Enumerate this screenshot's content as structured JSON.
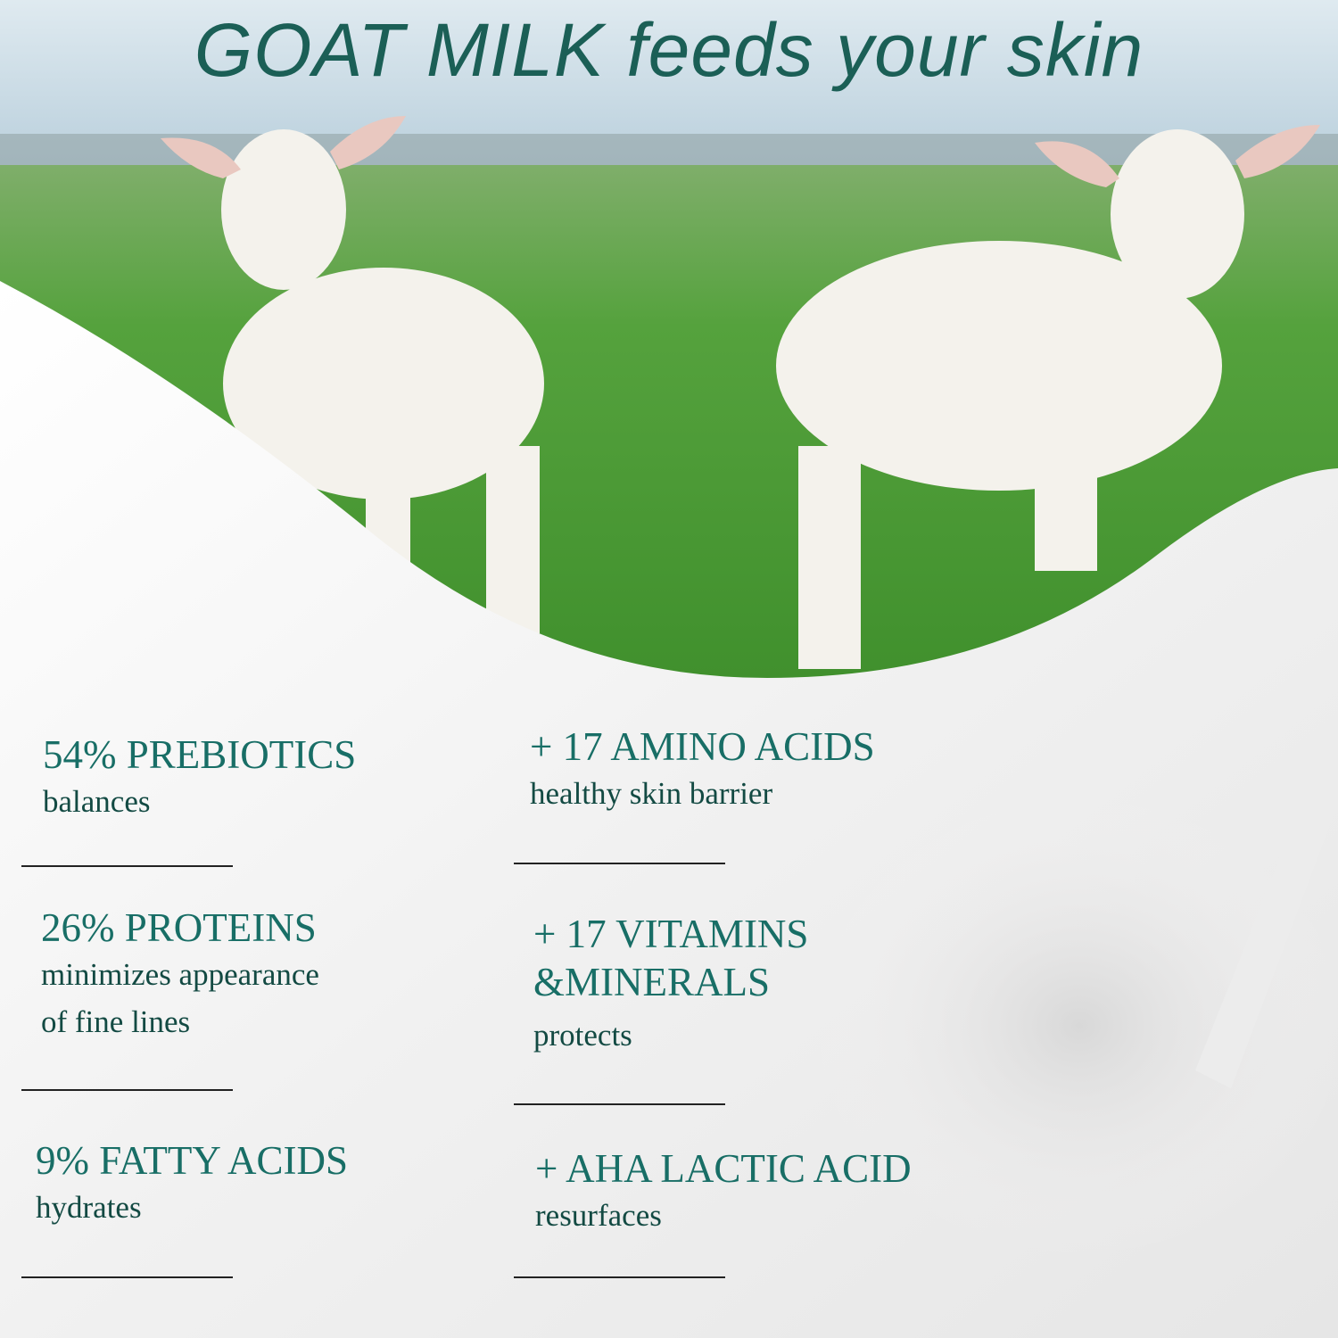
{
  "title": "GOAT MILK feeds your skin",
  "colors": {
    "heading": "#186e66",
    "subtext": "#134a43",
    "title": "#1b5f56",
    "grass": "#4f9a3a",
    "sky": "#c9dde8"
  },
  "left_items": [
    {
      "heading": "54% PREBIOTICS",
      "lines": [
        "balances"
      ]
    },
    {
      "heading": "26% PROTEINS",
      "lines": [
        "minimizes appearance",
        "of fine lines"
      ]
    },
    {
      "heading": "9% FATTY ACIDS",
      "lines": [
        "hydrates"
      ]
    }
  ],
  "right_items": [
    {
      "heading": [
        "+ 17 AMINO ACIDS"
      ],
      "lines": [
        "healthy skin barrier"
      ]
    },
    {
      "heading": [
        "+ 17 VITAMINS",
        "&MINERALS"
      ],
      "lines": [
        "protects"
      ]
    },
    {
      "heading": [
        "+ AHA LACTIC ACID"
      ],
      "lines": [
        "resurfaces"
      ]
    }
  ]
}
